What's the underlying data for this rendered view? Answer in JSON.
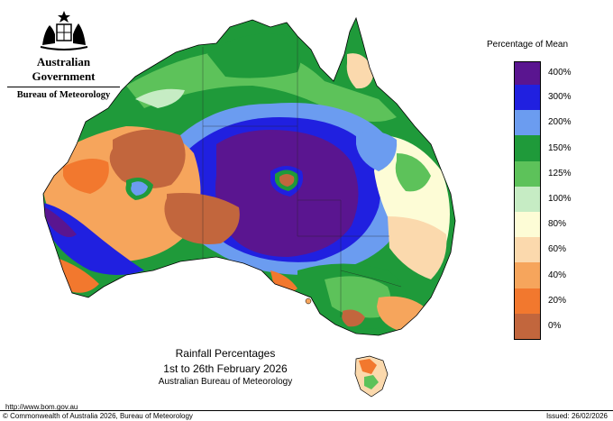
{
  "header": {
    "government": "Australian Government",
    "bureau": "Bureau of Meteorology",
    "crest_icon": "coat-of-arms-icon"
  },
  "legend": {
    "title": "Percentage of Mean",
    "classes": [
      {
        "label": "400%",
        "color": "#5a1590"
      },
      {
        "label": "300%",
        "color": "#2020e0"
      },
      {
        "label": "200%",
        "color": "#6b9cf0"
      },
      {
        "label": "150%",
        "color": "#1f9a3a"
      },
      {
        "label": "125%",
        "color": "#5dc25a"
      },
      {
        "label": "100%",
        "color": "#c6ecc4"
      },
      {
        "label": "80%",
        "color": "#fdfcd6"
      },
      {
        "label": "60%",
        "color": "#fbd9ad"
      },
      {
        "label": "40%",
        "color": "#f6a55c"
      },
      {
        "label": "20%",
        "color": "#f2782e"
      },
      {
        "label": "0%",
        "color": "#c2663d"
      }
    ]
  },
  "caption": {
    "title": "Rainfall Percentages",
    "period": "1st to 26th February 2026",
    "source": "Australian Bureau of Meteorology"
  },
  "footer": {
    "url": "http://www.bom.gov.au",
    "copyright": "© Commonwealth of Australia 2026, Bureau of Meteorology",
    "issued": "Issued: 26/02/2026"
  }
}
